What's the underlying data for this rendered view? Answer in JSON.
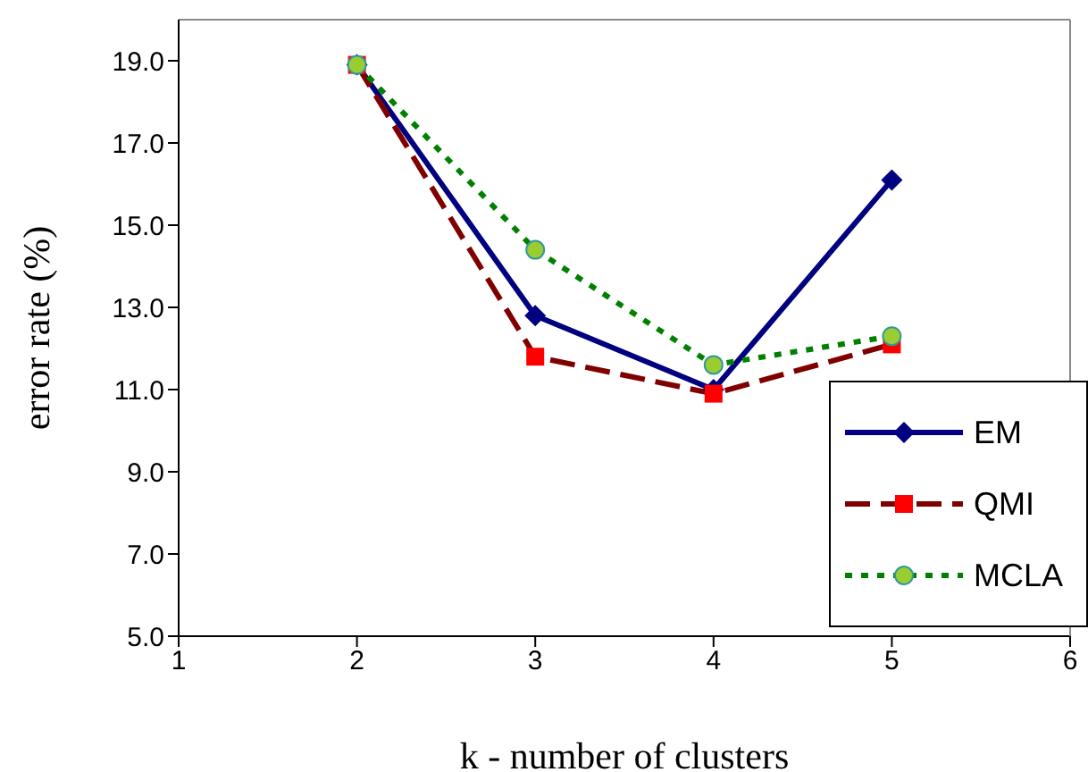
{
  "chart_data": {
    "type": "line",
    "xlabel": "k - number of clusters",
    "ylabel": "error rate (%)",
    "x": [
      2,
      3,
      4,
      5
    ],
    "series": [
      {
        "name": "EM",
        "color": "#000080",
        "values": [
          18.9,
          12.8,
          11.0,
          16.1
        ],
        "marker": "diamond",
        "line_style": "solid"
      },
      {
        "name": "QMI",
        "color": "#800000",
        "values": [
          18.9,
          11.8,
          10.9,
          12.1
        ],
        "marker": "square",
        "line_style": "dashed"
      },
      {
        "name": "MCLA",
        "color": "#008000",
        "values": [
          18.9,
          14.4,
          11.6,
          12.3
        ],
        "marker": "circle",
        "line_style": "dotted"
      }
    ],
    "xlim": [
      1,
      6
    ],
    "xticks": [
      1,
      2,
      3,
      4,
      5,
      6
    ],
    "ylim": [
      5,
      20
    ],
    "yticks": [
      {
        "value": 5,
        "label": "5.0"
      },
      {
        "value": 7,
        "label": "7.0"
      },
      {
        "value": 9,
        "label": "9.0"
      },
      {
        "value": 11,
        "label": "11.0"
      },
      {
        "value": 13,
        "label": "13.0"
      },
      {
        "value": 15,
        "label": "15.0"
      },
      {
        "value": 17,
        "label": "17.0"
      },
      {
        "value": 19,
        "label": "19.0"
      }
    ],
    "grid": false,
    "legend": "right"
  }
}
